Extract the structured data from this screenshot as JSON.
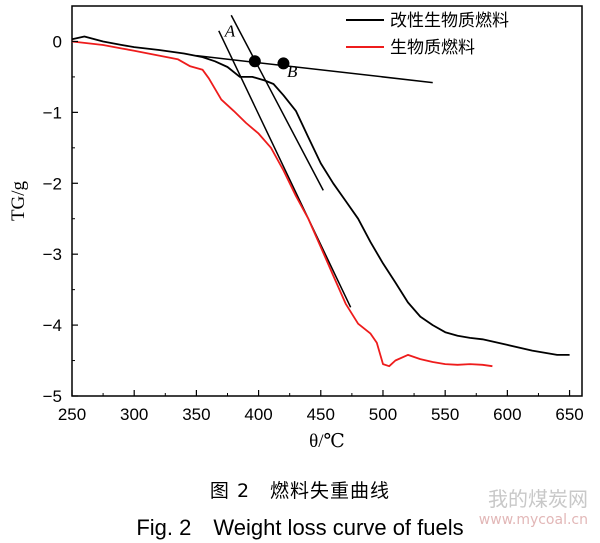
{
  "chart_data": {
    "type": "line",
    "xlabel": "θ/℃",
    "ylabel": "TG/g",
    "xlim": [
      250,
      660
    ],
    "ylim": [
      -5,
      0.5
    ],
    "xticks": [
      250,
      300,
      350,
      400,
      450,
      500,
      550,
      600,
      650
    ],
    "yticks": [
      0,
      -1,
      -2,
      -3,
      -4,
      -5
    ],
    "xtick_labels": [
      "250",
      "300",
      "350",
      "400",
      "450",
      "500",
      "550",
      "600",
      "650"
    ],
    "ytick_labels": [
      "0",
      "−1",
      "−2",
      "−3",
      "−4",
      "−5"
    ],
    "grid": false,
    "legend_position": "top-right",
    "series": [
      {
        "name": "改性生物质燃料",
        "color": "#000000",
        "x": [
          250,
          260,
          275,
          290,
          300,
          320,
          340,
          355,
          365,
          375,
          385,
          395,
          405,
          412,
          420,
          430,
          440,
          450,
          460,
          470,
          480,
          490,
          500,
          510,
          520,
          530,
          540,
          550,
          560,
          570,
          580,
          600,
          620,
          640,
          650
        ],
        "y": [
          0.03,
          0.07,
          0.0,
          -0.05,
          -0.08,
          -0.12,
          -0.17,
          -0.22,
          -0.28,
          -0.36,
          -0.5,
          -0.5,
          -0.55,
          -0.6,
          -0.76,
          -0.98,
          -1.35,
          -1.72,
          -2.0,
          -2.25,
          -2.5,
          -2.83,
          -3.13,
          -3.4,
          -3.68,
          -3.88,
          -4.0,
          -4.1,
          -4.15,
          -4.18,
          -4.2,
          -4.28,
          -4.36,
          -4.42,
          -4.42
        ]
      },
      {
        "name": "生物质燃料",
        "color": "#ee1c1c",
        "x": [
          250,
          260,
          275,
          290,
          300,
          320,
          335,
          345,
          355,
          360,
          370,
          380,
          390,
          400,
          410,
          420,
          430,
          440,
          450,
          460,
          470,
          480,
          490,
          495,
          500,
          505,
          510,
          520,
          530,
          540,
          550,
          560,
          570,
          580,
          588
        ],
        "y": [
          0.0,
          -0.02,
          -0.05,
          -0.1,
          -0.13,
          -0.2,
          -0.25,
          -0.35,
          -0.4,
          -0.52,
          -0.82,
          -0.98,
          -1.15,
          -1.3,
          -1.5,
          -1.82,
          -2.18,
          -2.5,
          -2.9,
          -3.3,
          -3.7,
          -3.98,
          -4.12,
          -4.25,
          -4.55,
          -4.58,
          -4.5,
          -4.42,
          -4.48,
          -4.52,
          -4.55,
          -4.56,
          -4.55,
          -4.56,
          -4.58
        ]
      }
    ],
    "tangent_lines": [
      {
        "x": [
          350,
          540
        ],
        "y": [
          -0.2,
          -0.58
        ]
      },
      {
        "x": [
          368,
          474
        ],
        "y": [
          0.15,
          -3.75
        ]
      },
      {
        "x": [
          378,
          452
        ],
        "y": [
          0.37,
          -2.1
        ]
      }
    ],
    "annotations": [
      {
        "text": "A",
        "x": 377,
        "y": 0.07
      },
      {
        "text": "B",
        "x": 427,
        "y": -0.5
      }
    ],
    "markers": [
      {
        "x": 397,
        "y": -0.28
      },
      {
        "x": 420,
        "y": -0.31
      }
    ]
  },
  "caption": {
    "zh": "图 2　燃料失重曲线",
    "en": "Fig. 2　Weight loss curve of fuels"
  },
  "watermark": {
    "title": "我的煤炭网",
    "url": "www.mycoal.cn"
  }
}
